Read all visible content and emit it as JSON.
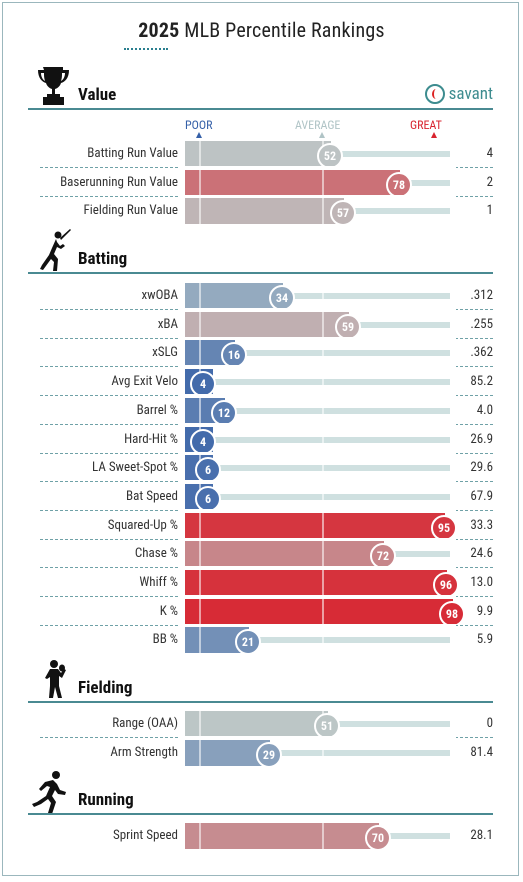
{
  "title": {
    "year": "2025",
    "rest": " MLB Percentile Rankings"
  },
  "brand": {
    "label": "savant"
  },
  "scale": {
    "poor": "POOR",
    "average": "AVERAGE",
    "great": "GREAT"
  },
  "colors": {
    "poor_blue": "#3560a8",
    "avg_gray": "#bdbdbd",
    "great_red": "#d8242f",
    "accent": "#3d8c8f"
  },
  "sections": [
    {
      "key": "value",
      "label": "Value",
      "icon": "trophy-icon",
      "rows": [
        {
          "name": "Batting Run Value",
          "pct": 52,
          "value": "4"
        },
        {
          "name": "Baserunning Run Value",
          "pct": 78,
          "value": "2"
        },
        {
          "name": "Fielding Run Value",
          "pct": 57,
          "value": "1"
        }
      ]
    },
    {
      "key": "batting",
      "label": "Batting",
      "icon": "batter-icon",
      "rows": [
        {
          "name": "xwOBA",
          "pct": 34,
          "value": ".312"
        },
        {
          "name": "xBA",
          "pct": 59,
          "value": ".255"
        },
        {
          "name": "xSLG",
          "pct": 16,
          "value": ".362"
        },
        {
          "name": "Avg Exit Velo",
          "pct": 4,
          "value": "85.2"
        },
        {
          "name": "Barrel %",
          "pct": 12,
          "value": "4.0"
        },
        {
          "name": "Hard-Hit %",
          "pct": 4,
          "value": "26.9"
        },
        {
          "name": "LA Sweet-Spot %",
          "pct": 6,
          "value": "29.6"
        },
        {
          "name": "Bat Speed",
          "pct": 6,
          "value": "67.9"
        },
        {
          "name": "Squared-Up %",
          "pct": 95,
          "value": "33.3"
        },
        {
          "name": "Chase %",
          "pct": 72,
          "value": "24.6"
        },
        {
          "name": "Whiff %",
          "pct": 96,
          "value": "13.0"
        },
        {
          "name": "K %",
          "pct": 98,
          "value": "9.9"
        },
        {
          "name": "BB %",
          "pct": 21,
          "value": "5.9"
        }
      ]
    },
    {
      "key": "fielding",
      "label": "Fielding",
      "icon": "fielder-icon",
      "rows": [
        {
          "name": "Range (OAA)",
          "pct": 51,
          "value": "0"
        },
        {
          "name": "Arm Strength",
          "pct": 29,
          "value": "81.4"
        }
      ]
    },
    {
      "key": "running",
      "label": "Running",
      "icon": "runner-icon",
      "rows": [
        {
          "name": "Sprint Speed",
          "pct": 70,
          "value": "28.1"
        }
      ]
    }
  ]
}
